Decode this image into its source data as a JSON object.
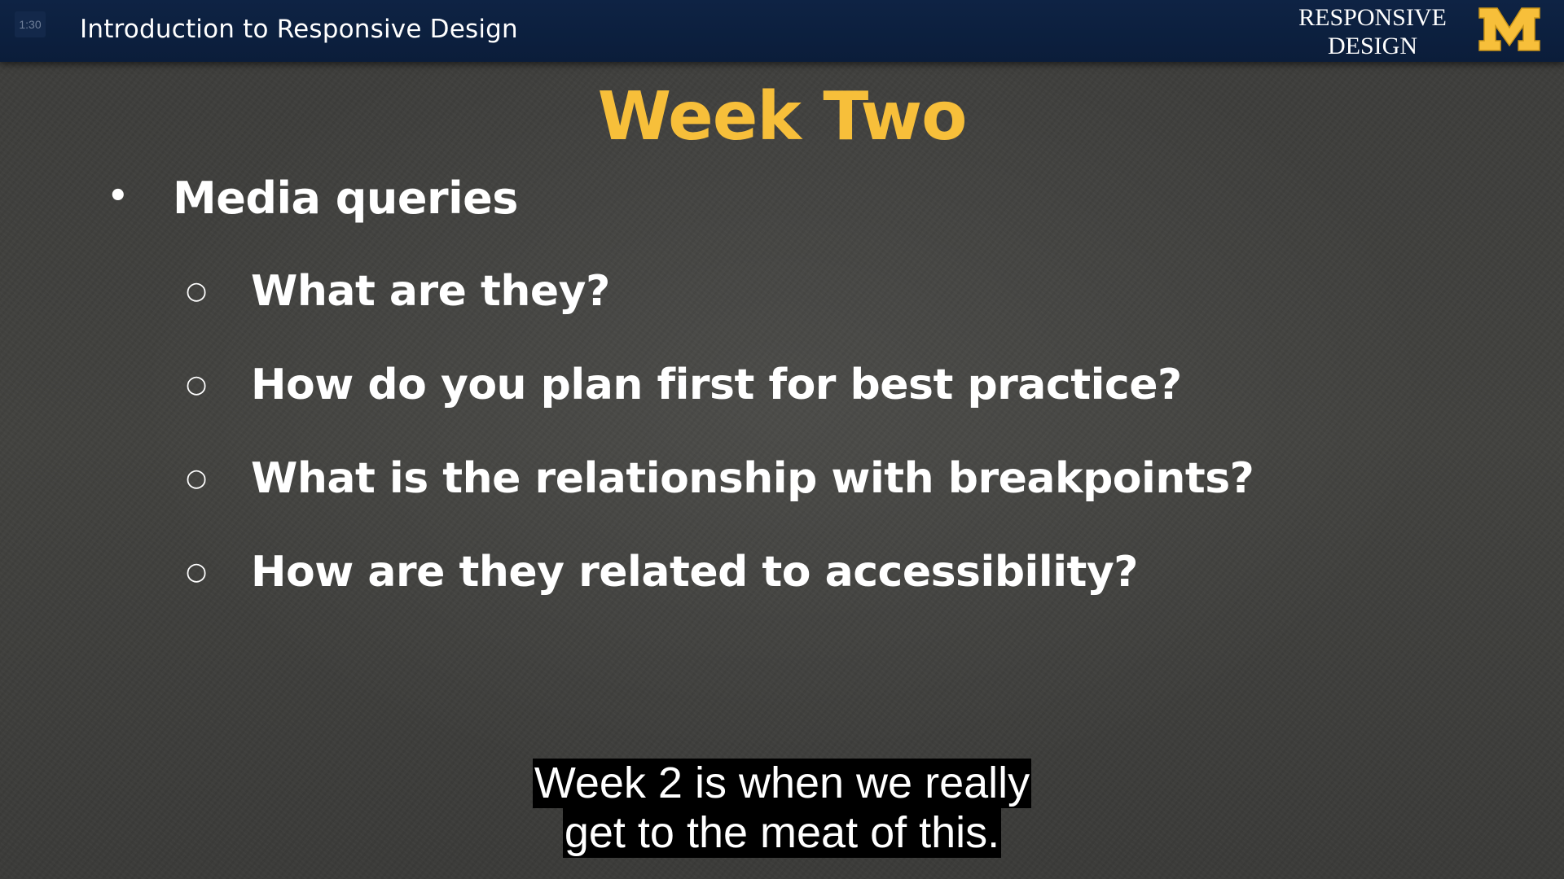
{
  "header": {
    "slide_number": "1:30",
    "course_title": "Introduction to Responsive Design",
    "brand_line_1": "RESPONSIVE",
    "brand_line_2": "DESIGN",
    "logo_icon": "michigan-block-m-icon",
    "background_color": "#0b1d3a",
    "logo_color": "#f7bf3a"
  },
  "slide": {
    "title": "Week Two",
    "title_color": "#f7bf3a",
    "bullets": [
      {
        "marker": "•",
        "level": 1,
        "text": "Media queries"
      },
      {
        "marker": "○",
        "level": 2,
        "text": "What are they?"
      },
      {
        "marker": "○",
        "level": 2,
        "text": "How do you plan first for best practice?"
      },
      {
        "marker": "○",
        "level": 2,
        "text": "What is the relationship with breakpoints?"
      },
      {
        "marker": "○",
        "level": 2,
        "text": "How are they related to accessibility?"
      }
    ]
  },
  "captions": {
    "line_1": "Week 2 is when we really",
    "line_2": "get to the meat of this."
  }
}
